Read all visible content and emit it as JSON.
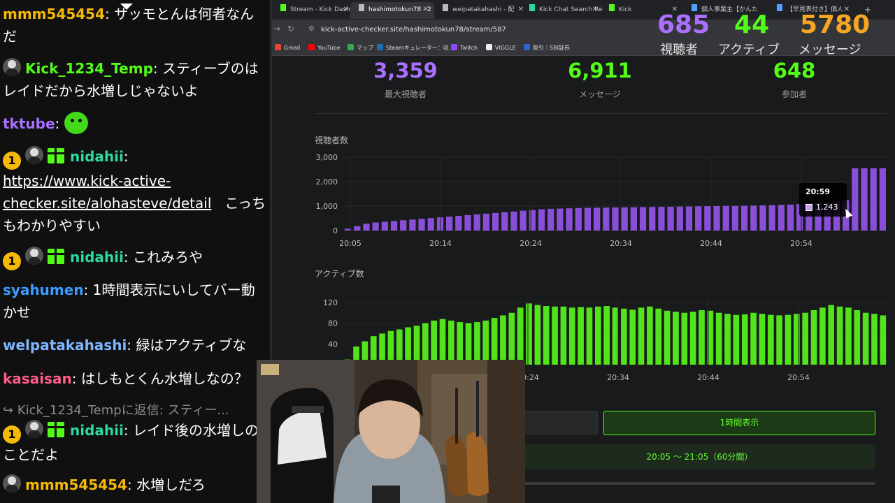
{
  "chat": {
    "messages": [
      {
        "user": "mmm545454",
        "color": "#f5b90a",
        "text": "サッモとんは何者なんだ",
        "badges": []
      },
      {
        "user": "Kick_1234_Temp",
        "color": "#53fc18",
        "text": "スティーブのはレイドだから水増しじゃないよ",
        "badges": [
          "avatar"
        ]
      },
      {
        "user": "tktube",
        "color": "#a970ff",
        "text": "",
        "badges": [],
        "emote": "green-emote"
      },
      {
        "user": "nidahii",
        "color": "#2bd9a3",
        "text": "こっちもわかりやすい",
        "link": "https://www.kick-active-checker.site/alohasteve/detail",
        "badges": [
          "one",
          "avatar",
          "gift"
        ]
      },
      {
        "user": "nidahii",
        "color": "#2bd9a3",
        "text": "これみろや",
        "badges": [
          "one",
          "avatar",
          "gift"
        ]
      },
      {
        "user": "syahumen",
        "color": "#3b9dff",
        "text": "1時間表示にいしてバー動かせ",
        "badges": []
      },
      {
        "user": "welpatakahashi",
        "color": "#7fb6ff",
        "text": "緑はアクティブな",
        "badges": []
      },
      {
        "user": "kasaisan",
        "color": "#ff5c8a",
        "text": "はしもとくん水増しなの？",
        "badges": []
      },
      {
        "reply": "↪ Kick_1234_Tempに返信: スティー..."
      },
      {
        "user": "nidahii",
        "color": "#2bd9a3",
        "text": "レイド後の水増しのことだよ",
        "badges": [
          "one",
          "avatar",
          "gift"
        ]
      },
      {
        "user": "mmm545454",
        "color": "#f5b90a",
        "text": "水増しだろ",
        "badges": [
          "avatar"
        ]
      }
    ],
    "badge_one_label": "1"
  },
  "browser": {
    "tabs": [
      {
        "label": "Stream - Kick Dashb",
        "active": false
      },
      {
        "label": "hashimotokun78 - 2",
        "active": true
      },
      {
        "label": "weipatakahashi - 配",
        "active": false
      },
      {
        "label": "Kick Chat Search Re",
        "active": false
      },
      {
        "label": "Kick",
        "active": false
      },
      {
        "label": "個人事業主【かんた",
        "active": false
      },
      {
        "label": "【早見表付き】個人",
        "active": false
      }
    ],
    "new_tab": "+",
    "url": "kick-active-checker.site/hashimotokun78/stream/587",
    "bookmarks": [
      {
        "label": "Gmail",
        "color": "#ea4335"
      },
      {
        "label": "YouTube",
        "color": "#ff0000"
      },
      {
        "label": "マップ",
        "color": "#34a853"
      },
      {
        "label": "Steamキュレーター：収...",
        "color": "#1b6fb3"
      },
      {
        "label": "Twitch",
        "color": "#9146ff"
      },
      {
        "label": "VIGGLE",
        "color": "#eeeeee"
      },
      {
        "label": "取引｜SBI証券",
        "color": "#2a62d8"
      }
    ]
  },
  "overlay": {
    "viewers": {
      "value": "685",
      "label": "視聴者",
      "color": "#a970ff"
    },
    "active": {
      "value": "44",
      "label": "アクティブ",
      "color": "#53fc18"
    },
    "messages": {
      "value": "5780",
      "label": "メッセージ",
      "color": "#f5a623"
    }
  },
  "stats": {
    "max_viewers": {
      "value": "3,359",
      "label": "最大視聴者",
      "color": "#a970ff"
    },
    "messages": {
      "value": "6,911",
      "label": "メッセージ",
      "color": "#53fc18"
    },
    "participants": {
      "value": "648",
      "label": "参加者",
      "color": "#53fc18"
    }
  },
  "tooltip": {
    "time": "20:59",
    "value": "1,243"
  },
  "controls": {
    "hour_view_label": "1時間表示",
    "range_label": "20:05 〜 21:05（60分間）"
  },
  "chart_data": [
    {
      "type": "bar",
      "title": "視聴者数",
      "color": "#8a4fd8",
      "x_ticks": [
        "20:05",
        "20:14",
        "20:24",
        "20:34",
        "20:44",
        "20:54"
      ],
      "y_ticks": [
        "0",
        "1,000",
        "2,000",
        "3,000"
      ],
      "ylim": [
        0,
        3000
      ],
      "values": [
        80,
        180,
        280,
        330,
        360,
        390,
        420,
        450,
        480,
        510,
        540,
        570,
        600,
        630,
        660,
        690,
        720,
        750,
        780,
        810,
        840,
        870,
        890,
        900,
        910,
        920,
        930,
        935,
        940,
        945,
        950,
        955,
        960,
        965,
        970,
        975,
        980,
        985,
        990,
        995,
        1000,
        1005,
        1010,
        1015,
        1020,
        1030,
        1040,
        1050,
        1060,
        1080,
        1100,
        1120,
        1150,
        1180,
        1243,
        2550,
        2550,
        2550,
        2550
      ]
    },
    {
      "type": "bar",
      "title": "アクティブ数",
      "color": "#53e31c",
      "x_ticks": [
        "20:24",
        "20:34",
        "20:44",
        "20:54"
      ],
      "y_ticks": [
        "40",
        "80",
        "120"
      ],
      "ylim": [
        0,
        140
      ],
      "values": [
        10,
        35,
        45,
        55,
        60,
        65,
        68,
        72,
        75,
        80,
        85,
        88,
        85,
        82,
        80,
        82,
        85,
        90,
        95,
        100,
        110,
        118,
        115,
        113,
        112,
        112,
        110,
        111,
        110,
        112,
        113,
        110,
        108,
        106,
        110,
        112,
        108,
        104,
        102,
        100,
        102,
        105,
        104,
        100,
        98,
        96,
        97,
        100,
        98,
        96,
        95,
        96,
        98,
        100,
        105,
        110,
        115,
        112,
        110,
        105,
        100,
        98,
        95
      ]
    }
  ]
}
